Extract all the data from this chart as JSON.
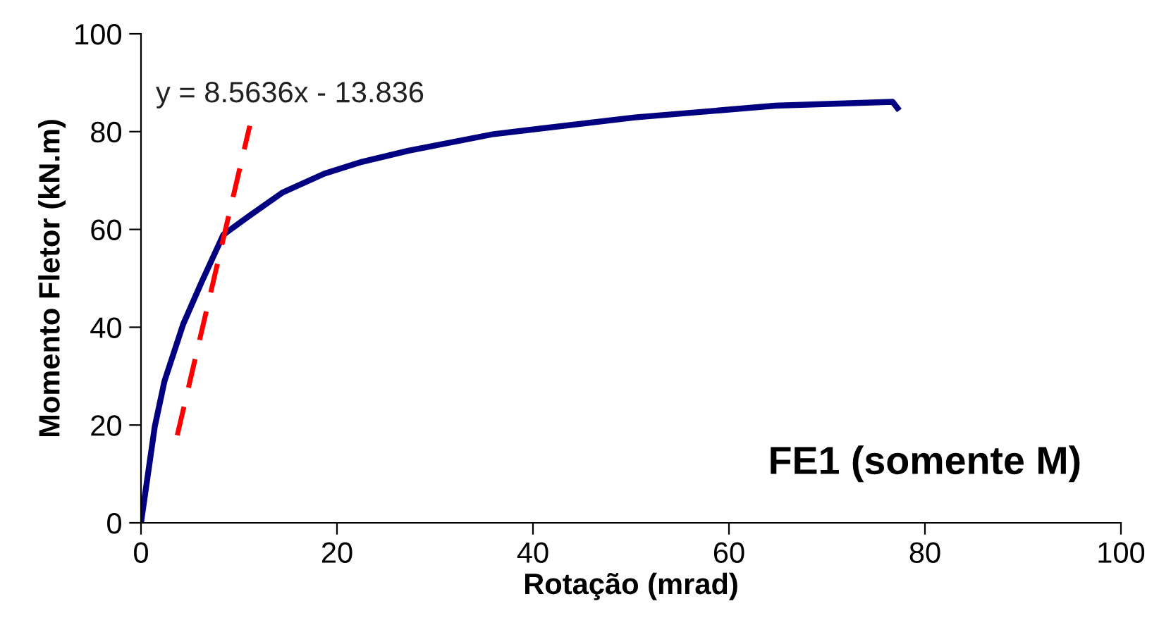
{
  "chart_data": {
    "type": "line",
    "xlabel": "Rotação (mrad)",
    "ylabel": "Momento Fletor (kN.m)",
    "xlim": [
      0,
      100
    ],
    "ylim": [
      0,
      100
    ],
    "xticks": [
      0,
      20,
      40,
      60,
      80,
      100
    ],
    "yticks": [
      0,
      20,
      40,
      60,
      80,
      100
    ],
    "grid": false,
    "legend": false,
    "annotations": [
      {
        "text": "y = 8.5636x - 13.836",
        "x": 11.1,
        "y": 81.2
      },
      "FE1 (somente M)"
    ],
    "series": [
      {
        "color": "#000080",
        "line_style": "solid",
        "x": [
          0,
          0.5,
          1.4,
          2.4,
          4.3,
          6.2,
          8.4,
          11,
          14.4,
          18.7,
          22.5,
          27.3,
          36,
          50.4,
          64.7,
          76.7,
          77.2
        ],
        "values": [
          0,
          7,
          19.6,
          29,
          40.6,
          49.3,
          58.9,
          62.7,
          67.5,
          71.4,
          73.8,
          76.1,
          79.5,
          82.9,
          85.3,
          86.1,
          84.8
        ]
      },
      {
        "color": "#ff0000",
        "line_style": "dashed",
        "x": [
          3.7,
          11.1
        ],
        "values": [
          17.9,
          81.2
        ]
      }
    ]
  }
}
